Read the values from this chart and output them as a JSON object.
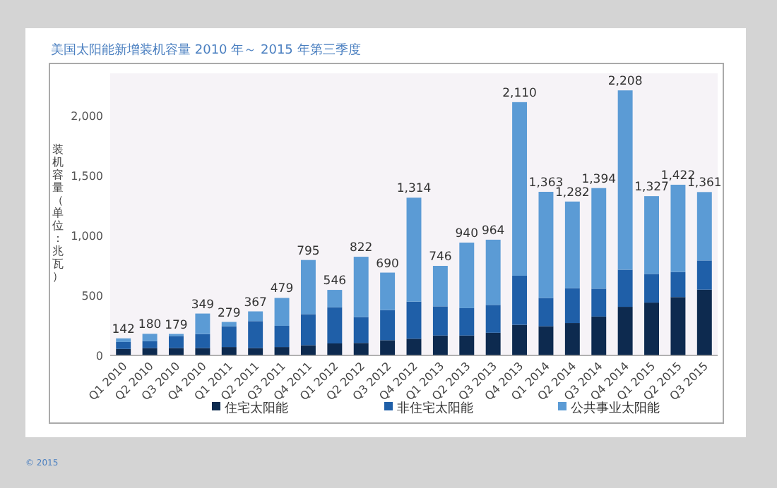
{
  "chart_data": {
    "type": "bar",
    "stacked": true,
    "title": "美国太阳能新增装机容量 2010 年～ 2015 年第三季度",
    "ylabel": "装机容量（单位：兆瓦）",
    "categories": [
      "Q1 2010",
      "Q2 2010",
      "Q3 2010",
      "Q4 2010",
      "Q1 2011",
      "Q2 2011",
      "Q3 2011",
      "Q4 2011",
      "Q1 2012",
      "Q2 2012",
      "Q3 2012",
      "Q4 2012",
      "Q1 2013",
      "Q2 2013",
      "Q3 2013",
      "Q4 2013",
      "Q1 2014",
      "Q2 2014",
      "Q3 2014",
      "Q4 2014",
      "Q1 2015",
      "Q2 2015",
      "Q3 2015"
    ],
    "series": [
      {
        "name": "住宅太阳能",
        "color": "#0d2a4f",
        "values": [
          54,
          62,
          62,
          62,
          70,
          62,
          70,
          85,
          100,
          104,
          127,
          139,
          166,
          166,
          189,
          255,
          243,
          270,
          324,
          405,
          440,
          486,
          548
        ]
      },
      {
        "name": "非住宅太阳能",
        "color": "#1f5fa8",
        "values": [
          58,
          58,
          100,
          116,
          173,
          224,
          177,
          259,
          301,
          216,
          251,
          309,
          243,
          228,
          232,
          409,
          236,
          290,
          232,
          309,
          239,
          209,
          243
        ]
      },
      {
        "name": "公共事业太阳能",
        "color": "#5b9bd5",
        "values": [
          30,
          60,
          17,
          171,
          36,
          81,
          232,
          451,
          145,
          502,
          312,
          866,
          337,
          546,
          543,
          1446,
          884,
          722,
          838,
          1494,
          648,
          727,
          570
        ]
      }
    ],
    "totals": [
      "142",
      "180",
      "179",
      "349",
      "279",
      "367",
      "479",
      "795",
      "546",
      "822",
      "690",
      "1,314",
      "746",
      "940",
      "964",
      "2,110",
      "1,363",
      "1,282",
      "1,394",
      "2,208",
      "1,327",
      "1,422",
      "1,361"
    ],
    "ylim": [
      0,
      2350
    ],
    "yticks": [
      0,
      500,
      {
        "value": 1000,
        "label": "1,000"
      },
      {
        "value": 1500,
        "label": "1,500"
      },
      {
        "value": 2000,
        "label": "2,000"
      }
    ],
    "legend": "bottom",
    "annotations": [
      "© 2015"
    ]
  }
}
